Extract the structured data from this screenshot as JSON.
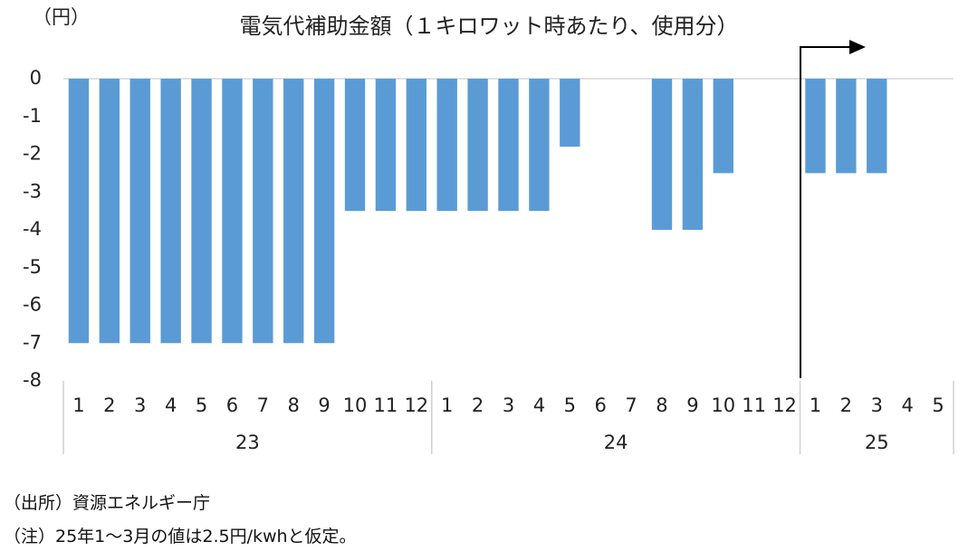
{
  "chart_data": {
    "type": "bar",
    "title": "電気代補助金額（１キロワット時あたり、使用分）",
    "y_unit": "（円）",
    "color": "#5b9bd5",
    "ylim": [
      -8,
      0
    ],
    "yticks": [
      0,
      -1,
      -2,
      -3,
      -4,
      -5,
      -6,
      -7,
      -8
    ],
    "grid": true,
    "groups": [
      {
        "label": "23",
        "categories": [
          "1",
          "2",
          "3",
          "4",
          "5",
          "6",
          "7",
          "8",
          "9",
          "10",
          "11",
          "12"
        ],
        "values": [
          -7,
          -7,
          -7,
          -7,
          -7,
          -7,
          -7,
          -7,
          -7,
          -3.5,
          -3.5,
          -3.5
        ]
      },
      {
        "label": "24",
        "categories": [
          "1",
          "2",
          "3",
          "4",
          "5",
          "6",
          "7",
          "8",
          "9",
          "10",
          "11",
          "12"
        ],
        "values": [
          -3.5,
          -3.5,
          -3.5,
          -3.5,
          -1.8,
          null,
          null,
          -4,
          -4,
          -2.5,
          null,
          null
        ]
      },
      {
        "label": "25",
        "categories": [
          "1",
          "2",
          "3",
          "4",
          "5"
        ],
        "values": [
          -2.5,
          -2.5,
          -2.5,
          null,
          null
        ]
      }
    ]
  },
  "notes": [
    "（出所）資源エネルギー庁",
    "（注）25年1～3月の値は2.5円/kwhと仮定。"
  ]
}
